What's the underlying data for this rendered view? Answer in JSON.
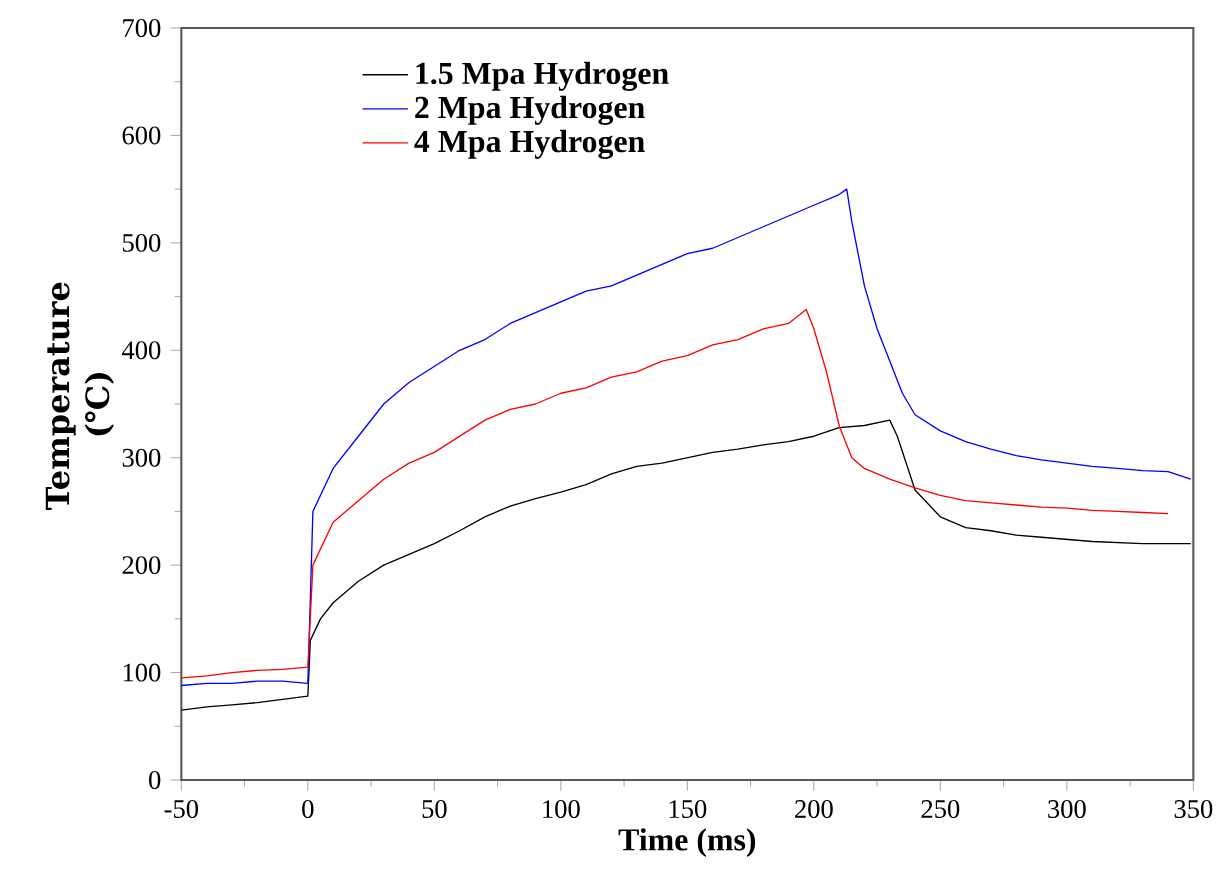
{
  "chart_data": {
    "type": "line",
    "xlabel": "Time (ms)",
    "ylabel": "Temperature (℃)",
    "xlim": [
      -50,
      350
    ],
    "xticks": [
      -50,
      0,
      50,
      100,
      150,
      200,
      250,
      300,
      350
    ],
    "ylim": [
      0,
      700
    ],
    "yticks": [
      0,
      100,
      200,
      300,
      400,
      500,
      600,
      700
    ],
    "grid": false,
    "legend": "top left",
    "marker": "none",
    "line_style": "solid",
    "series": [
      {
        "name": "1.5 Mpa Hydrogen",
        "color": "#000000",
        "x": [
          -50,
          -40,
          -30,
          -20,
          -10,
          0,
          1,
          5,
          10,
          20,
          30,
          40,
          50,
          60,
          70,
          80,
          90,
          100,
          110,
          120,
          130,
          140,
          150,
          160,
          170,
          180,
          190,
          200,
          210,
          220,
          230,
          233,
          240,
          250,
          260,
          270,
          280,
          290,
          300,
          310,
          320,
          330,
          340,
          349
        ],
        "values": [
          65,
          68,
          70,
          72,
          75,
          78,
          130,
          150,
          165,
          185,
          200,
          210,
          220,
          232,
          245,
          255,
          262,
          268,
          275,
          285,
          292,
          295,
          300,
          305,
          308,
          312,
          315,
          320,
          328,
          330,
          335,
          320,
          270,
          245,
          235,
          232,
          228,
          226,
          224,
          222,
          221,
          220,
          220,
          220
        ]
      },
      {
        "name": "2 Mpa Hydrogen",
        "color": "#0000ff",
        "x": [
          -50,
          -40,
          -30,
          -20,
          -10,
          0,
          2,
          10,
          20,
          30,
          40,
          50,
          60,
          70,
          80,
          90,
          100,
          110,
          120,
          130,
          140,
          150,
          160,
          170,
          180,
          190,
          200,
          210,
          213,
          215,
          220,
          225,
          230,
          235,
          240,
          250,
          260,
          270,
          280,
          290,
          300,
          310,
          320,
          330,
          340,
          349
        ],
        "values": [
          88,
          90,
          90,
          92,
          92,
          90,
          250,
          290,
          320,
          350,
          370,
          385,
          400,
          410,
          425,
          435,
          445,
          455,
          460,
          470,
          480,
          490,
          495,
          505,
          515,
          525,
          535,
          545,
          550,
          520,
          460,
          420,
          390,
          360,
          340,
          325,
          315,
          308,
          302,
          298,
          295,
          292,
          290,
          288,
          287,
          280
        ]
      },
      {
        "name": "4 Mpa Hydrogen",
        "color": "#ff0000",
        "x": [
          -50,
          -40,
          -30,
          -20,
          -10,
          0,
          2,
          10,
          20,
          30,
          40,
          50,
          60,
          70,
          80,
          90,
          100,
          110,
          120,
          130,
          140,
          150,
          160,
          170,
          180,
          190,
          197,
          200,
          205,
          210,
          215,
          220,
          230,
          240,
          250,
          260,
          270,
          280,
          290,
          300,
          310,
          320,
          330,
          340
        ],
        "values": [
          95,
          97,
          100,
          102,
          103,
          105,
          200,
          240,
          260,
          280,
          295,
          305,
          320,
          335,
          345,
          350,
          360,
          365,
          375,
          380,
          390,
          395,
          405,
          410,
          420,
          425,
          438,
          420,
          380,
          330,
          300,
          290,
          280,
          272,
          265,
          260,
          258,
          256,
          254,
          253,
          251,
          250,
          249,
          248
        ]
      }
    ]
  }
}
